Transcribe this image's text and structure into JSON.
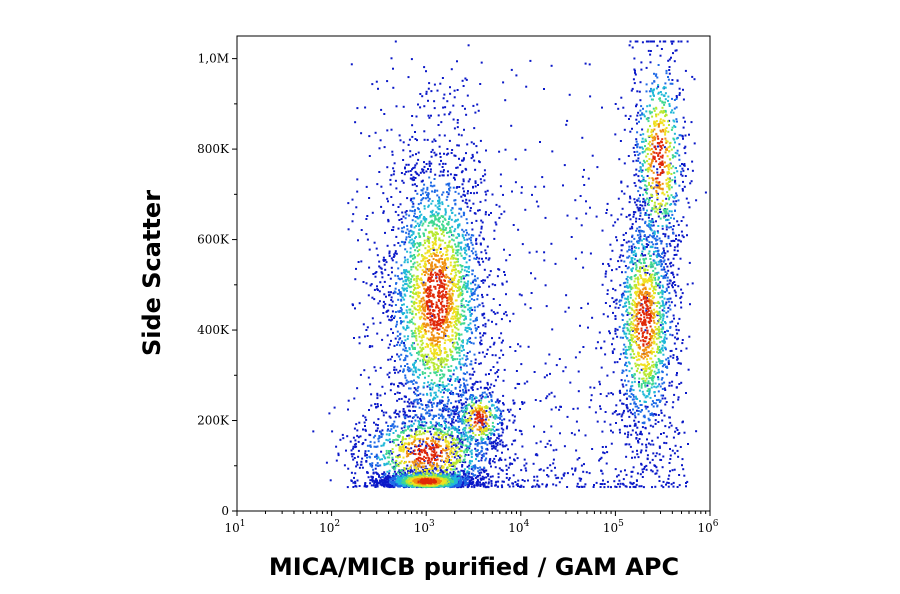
{
  "chart_data": {
    "type": "scatter",
    "subtype": "flow-cytometry-density-dot-plot",
    "xlabel": "MICA/MICB purified / GAM APC",
    "ylabel": "Side Scatter",
    "x_scale": "log",
    "xlim": [
      10,
      1000000
    ],
    "x_tick_labels": [
      {
        "value": 10,
        "base": "10",
        "exp": "1"
      },
      {
        "value": 100,
        "base": "10",
        "exp": "2"
      },
      {
        "value": 1000,
        "base": "10",
        "exp": "3"
      },
      {
        "value": 10000,
        "base": "10",
        "exp": "4"
      },
      {
        "value": 100000,
        "base": "10",
        "exp": "5"
      },
      {
        "value": 1000000,
        "base": "10",
        "exp": "6"
      }
    ],
    "y_scale": "linear",
    "ylim": [
      0,
      1050000
    ],
    "y_tick_labels": [
      {
        "value": 0,
        "label": "0"
      },
      {
        "value": 200000,
        "label": "200K"
      },
      {
        "value": 400000,
        "label": "400K"
      },
      {
        "value": 600000,
        "label": "600K"
      },
      {
        "value": 800000,
        "label": "800K"
      },
      {
        "value": 1000000,
        "label": "1,0M"
      }
    ],
    "grid": false,
    "legend": false,
    "density_colormap": [
      "#0a18c8",
      "#1e6ae6",
      "#20b8d8",
      "#40d890",
      "#b8e830",
      "#f0e020",
      "#f09010",
      "#e02808"
    ],
    "populations": [
      {
        "log10_x_center": 3.1,
        "log10_x_spread": 0.28,
        "y_center": 470000,
        "y_spread": 170000,
        "relative_count": 0.3
      },
      {
        "log10_x_center": 3.0,
        "log10_x_spread": 0.25,
        "y_center": 68000,
        "y_spread": 12000,
        "relative_count": 0.14
      },
      {
        "log10_x_center": 3.0,
        "log10_x_spread": 0.4,
        "y_center": 130000,
        "y_spread": 55000,
        "relative_count": 0.12
      },
      {
        "log10_x_center": 3.55,
        "log10_x_spread": 0.15,
        "y_center": 205000,
        "y_spread": 40000,
        "relative_count": 0.04
      },
      {
        "log10_x_center": 5.3,
        "log10_x_spread": 0.17,
        "y_center": 420000,
        "y_spread": 140000,
        "relative_count": 0.16
      },
      {
        "log10_x_center": 5.45,
        "log10_x_spread": 0.15,
        "y_center": 780000,
        "y_spread": 130000,
        "relative_count": 0.08
      }
    ]
  }
}
